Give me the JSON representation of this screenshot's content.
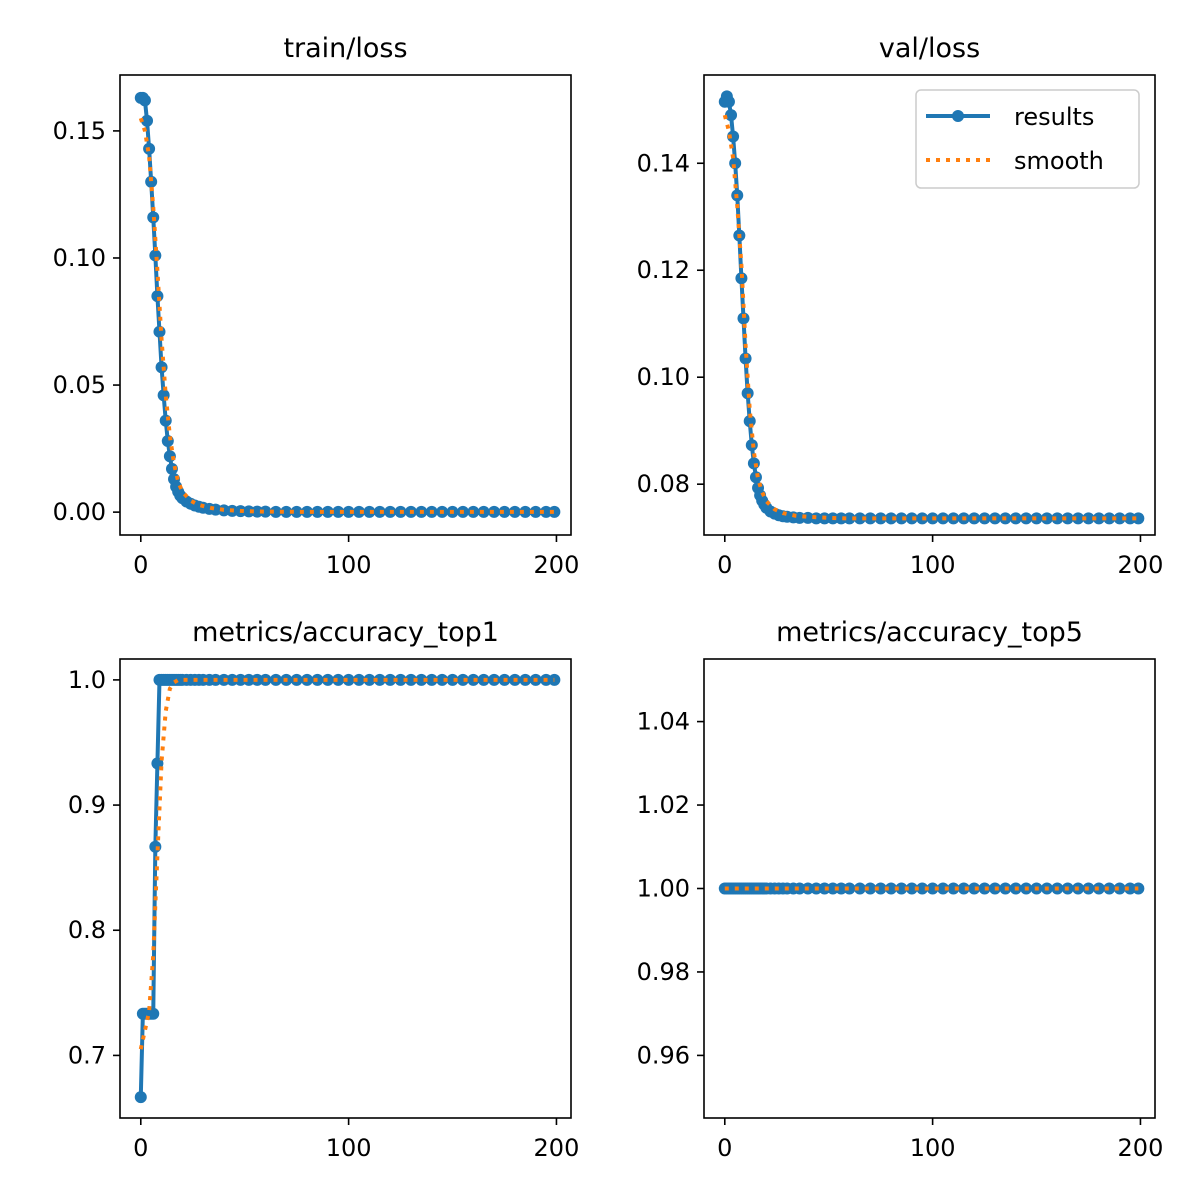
{
  "figure": {
    "colors": {
      "results": "#1f77b4",
      "smooth": "#ff7f0e",
      "axes": "#000000",
      "background": "#ffffff"
    }
  },
  "legend": {
    "placement": "upper-right of val/loss panel",
    "entries": [
      {
        "label": "results",
        "style": "solid line with circle markers",
        "color": "#1f77b4"
      },
      {
        "label": "smooth",
        "style": "dotted line",
        "color": "#ff7f0e"
      }
    ]
  },
  "chart_data": [
    {
      "type": "line",
      "title": "train/loss",
      "xlim": [
        -10,
        207
      ],
      "ylim": [
        -0.009,
        0.172
      ],
      "xticks": [
        0,
        100,
        200
      ],
      "xtick_labels": [
        "0",
        "100",
        "200"
      ],
      "yticks": [
        0.0,
        0.05,
        0.1,
        0.15
      ],
      "ytick_labels": [
        "0.00",
        "0.05",
        "0.10",
        "0.15"
      ],
      "grid": false,
      "series": [
        {
          "name": "results",
          "x": [
            0,
            1,
            2,
            3,
            4,
            5,
            6,
            7,
            8,
            9,
            10,
            11,
            12,
            13,
            14,
            15,
            16,
            17,
            18,
            19,
            20,
            22,
            24,
            26,
            28,
            30,
            33,
            36,
            40,
            44,
            48,
            52,
            56,
            60,
            65,
            70,
            75,
            80,
            85,
            90,
            95,
            100,
            105,
            110,
            115,
            120,
            125,
            130,
            135,
            140,
            145,
            150,
            155,
            160,
            165,
            170,
            175,
            180,
            185,
            190,
            195,
            199
          ],
          "y": [
            0.163,
            0.163,
            0.162,
            0.154,
            0.143,
            0.13,
            0.116,
            0.101,
            0.085,
            0.071,
            0.057,
            0.046,
            0.036,
            0.028,
            0.022,
            0.017,
            0.013,
            0.01,
            0.008,
            0.0065,
            0.0055,
            0.0042,
            0.0033,
            0.0026,
            0.0021,
            0.0017,
            0.0013,
            0.001,
            0.0007,
            0.0005,
            0.0004,
            0.0003,
            0.0002,
            0.0002,
            0.0001,
            0.0001,
            0.0001,
            0.0001,
            0.0001,
            0.0001,
            0.0001,
            0.0001,
            0.0001,
            0.0001,
            0.0001,
            0.0001,
            0.0001,
            0.0001,
            0.0001,
            0.0001,
            0.0001,
            0.0001,
            0.0001,
            0.0001,
            0.0001,
            0.0001,
            0.0001,
            0.0001,
            0.0001,
            0.0001,
            0.0001,
            0.0001
          ]
        },
        {
          "name": "smooth",
          "x": [
            0,
            2,
            4,
            6,
            8,
            10,
            12,
            14,
            16,
            18,
            20,
            24,
            28,
            34,
            40,
            50,
            60,
            80,
            100,
            120,
            140,
            160,
            180,
            199
          ],
          "y": [
            0.155,
            0.15,
            0.14,
            0.12,
            0.095,
            0.068,
            0.046,
            0.03,
            0.019,
            0.012,
            0.008,
            0.0045,
            0.0028,
            0.0016,
            0.0009,
            0.0004,
            0.0002,
            0.0001,
            0.0001,
            0.0001,
            0.0001,
            0.0001,
            0.0001,
            0.0001
          ]
        }
      ]
    },
    {
      "type": "line",
      "title": "val/loss",
      "xlim": [
        -10,
        207
      ],
      "ylim": [
        0.0705,
        0.1565
      ],
      "xticks": [
        0,
        100,
        200
      ],
      "xtick_labels": [
        "0",
        "100",
        "200"
      ],
      "yticks": [
        0.08,
        0.1,
        0.12,
        0.14
      ],
      "ytick_labels": [
        "0.08",
        "0.10",
        "0.12",
        "0.14"
      ],
      "grid": false,
      "series": [
        {
          "name": "results",
          "x": [
            0,
            1,
            2,
            3,
            4,
            5,
            6,
            7,
            8,
            9,
            10,
            11,
            12,
            13,
            14,
            15,
            16,
            17,
            18,
            19,
            20,
            22,
            24,
            26,
            28,
            30,
            33,
            36,
            40,
            44,
            48,
            52,
            56,
            60,
            65,
            70,
            75,
            80,
            85,
            90,
            95,
            100,
            105,
            110,
            115,
            120,
            125,
            130,
            135,
            140,
            145,
            150,
            155,
            160,
            165,
            170,
            175,
            180,
            185,
            190,
            195,
            199
          ],
          "y": [
            0.1515,
            0.1525,
            0.1515,
            0.149,
            0.145,
            0.14,
            0.134,
            0.1265,
            0.1185,
            0.111,
            0.1035,
            0.097,
            0.0918,
            0.0873,
            0.0839,
            0.0813,
            0.0793,
            0.0779,
            0.0769,
            0.0762,
            0.0756,
            0.0749,
            0.0745,
            0.0742,
            0.074,
            0.0739,
            0.0738,
            0.0737,
            0.0737,
            0.0736,
            0.0736,
            0.0736,
            0.0736,
            0.0736,
            0.0736,
            0.0736,
            0.0736,
            0.0736,
            0.0736,
            0.0736,
            0.0736,
            0.0736,
            0.0736,
            0.0736,
            0.0736,
            0.0736,
            0.0736,
            0.0736,
            0.0736,
            0.0736,
            0.0736,
            0.0736,
            0.0736,
            0.0736,
            0.0736,
            0.0736,
            0.0736,
            0.0736,
            0.0736,
            0.0736,
            0.0736,
            0.0736
          ]
        },
        {
          "name": "smooth",
          "x": [
            0,
            2,
            4,
            6,
            8,
            10,
            12,
            14,
            16,
            18,
            20,
            24,
            28,
            34,
            40,
            50,
            60,
            80,
            100,
            120,
            140,
            160,
            180,
            199
          ],
          "y": [
            0.149,
            0.146,
            0.141,
            0.132,
            0.121,
            0.106,
            0.094,
            0.086,
            0.081,
            0.0785,
            0.0768,
            0.0753,
            0.0746,
            0.0741,
            0.0739,
            0.0737,
            0.0736,
            0.0736,
            0.0736,
            0.0736,
            0.0736,
            0.0736,
            0.0736,
            0.0736
          ]
        }
      ]
    },
    {
      "type": "line",
      "title": "metrics/accuracy_top1",
      "xlim": [
        -10,
        207
      ],
      "ylim": [
        0.65,
        1.0167
      ],
      "xticks": [
        0,
        100,
        200
      ],
      "xtick_labels": [
        "0",
        "100",
        "200"
      ],
      "yticks": [
        0.7,
        0.8,
        0.9,
        1.0
      ],
      "ytick_labels": [
        "0.7",
        "0.8",
        "0.9",
        "1.0"
      ],
      "grid": false,
      "series": [
        {
          "name": "results",
          "x": [
            0,
            1,
            2,
            3,
            4,
            5,
            6,
            7,
            8,
            9,
            10,
            11,
            12,
            13,
            14,
            15,
            16,
            17,
            18,
            19,
            20,
            22,
            24,
            26,
            28,
            30,
            33,
            36,
            40,
            44,
            48,
            52,
            56,
            60,
            65,
            70,
            75,
            80,
            85,
            90,
            95,
            100,
            105,
            110,
            115,
            120,
            125,
            130,
            135,
            140,
            145,
            150,
            155,
            160,
            165,
            170,
            175,
            180,
            185,
            190,
            195,
            199
          ],
          "y": [
            0.6667,
            0.7333,
            0.7333,
            0.7333,
            0.7333,
            0.7333,
            0.7333,
            0.8667,
            0.9333,
            1.0,
            1.0,
            1.0,
            1.0,
            1.0,
            1.0,
            1.0,
            1.0,
            1.0,
            1.0,
            1.0,
            1.0,
            1.0,
            1.0,
            1.0,
            1.0,
            1.0,
            1.0,
            1.0,
            1.0,
            1.0,
            1.0,
            1.0,
            1.0,
            1.0,
            1.0,
            1.0,
            1.0,
            1.0,
            1.0,
            1.0,
            1.0,
            1.0,
            1.0,
            1.0,
            1.0,
            1.0,
            1.0,
            1.0,
            1.0,
            1.0,
            1.0,
            1.0,
            1.0,
            1.0,
            1.0,
            1.0,
            1.0,
            1.0,
            1.0,
            1.0,
            1.0,
            1.0
          ]
        },
        {
          "name": "smooth",
          "x": [
            0,
            2,
            4,
            6,
            8,
            10,
            12,
            14,
            16,
            18,
            20,
            40,
            60,
            80,
            100,
            120,
            140,
            160,
            180,
            199
          ],
          "y": [
            0.705,
            0.72,
            0.735,
            0.78,
            0.86,
            0.935,
            0.975,
            0.993,
            0.998,
            1.0,
            1.0,
            1.0,
            1.0,
            1.0,
            1.0,
            1.0,
            1.0,
            1.0,
            1.0,
            1.0
          ]
        }
      ]
    },
    {
      "type": "line",
      "title": "metrics/accuracy_top5",
      "xlim": [
        -10,
        207
      ],
      "ylim": [
        0.945,
        1.055
      ],
      "xticks": [
        0,
        100,
        200
      ],
      "xtick_labels": [
        "0",
        "100",
        "200"
      ],
      "yticks": [
        0.96,
        0.98,
        1.0,
        1.02,
        1.04
      ],
      "ytick_labels": [
        "0.96",
        "0.98",
        "1.00",
        "1.02",
        "1.04"
      ],
      "grid": false,
      "series": [
        {
          "name": "results",
          "x": [
            0,
            1,
            2,
            3,
            4,
            5,
            6,
            7,
            8,
            9,
            10,
            11,
            12,
            13,
            14,
            15,
            16,
            17,
            18,
            19,
            20,
            22,
            24,
            26,
            28,
            30,
            33,
            36,
            40,
            44,
            48,
            52,
            56,
            60,
            65,
            70,
            75,
            80,
            85,
            90,
            95,
            100,
            105,
            110,
            115,
            120,
            125,
            130,
            135,
            140,
            145,
            150,
            155,
            160,
            165,
            170,
            175,
            180,
            185,
            190,
            195,
            199
          ],
          "y": [
            1.0,
            1.0,
            1.0,
            1.0,
            1.0,
            1.0,
            1.0,
            1.0,
            1.0,
            1.0,
            1.0,
            1.0,
            1.0,
            1.0,
            1.0,
            1.0,
            1.0,
            1.0,
            1.0,
            1.0,
            1.0,
            1.0,
            1.0,
            1.0,
            1.0,
            1.0,
            1.0,
            1.0,
            1.0,
            1.0,
            1.0,
            1.0,
            1.0,
            1.0,
            1.0,
            1.0,
            1.0,
            1.0,
            1.0,
            1.0,
            1.0,
            1.0,
            1.0,
            1.0,
            1.0,
            1.0,
            1.0,
            1.0,
            1.0,
            1.0,
            1.0,
            1.0,
            1.0,
            1.0,
            1.0,
            1.0,
            1.0,
            1.0,
            1.0,
            1.0,
            1.0,
            1.0
          ]
        },
        {
          "name": "smooth",
          "x": [
            0,
            50,
            100,
            150,
            199
          ],
          "y": [
            1.0,
            1.0,
            1.0,
            1.0,
            1.0
          ]
        }
      ]
    }
  ]
}
